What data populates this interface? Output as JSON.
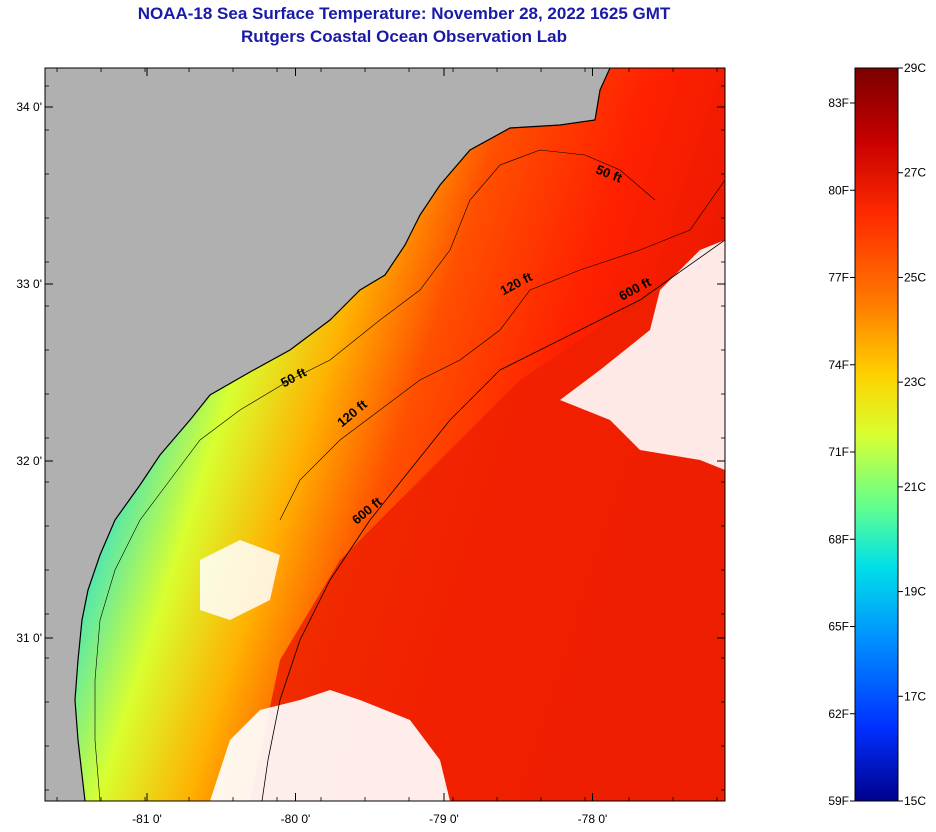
{
  "title": {
    "line1": "NOAA-18 Sea Surface Temperature:  November 28, 2022 1625 GMT",
    "line2": "Rutgers Coastal Ocean Observation Lab"
  },
  "map": {
    "lon_ticks": [
      {
        "lon": -81,
        "label": "-81 0'"
      },
      {
        "lon": -80,
        "label": "-80 0'"
      },
      {
        "lon": -79,
        "label": "-79 0'"
      },
      {
        "lon": -78,
        "label": "-78 0'"
      }
    ],
    "lat_ticks": [
      {
        "lat": 34,
        "label": "34 0'"
      },
      {
        "lat": 33,
        "label": "33 0'"
      },
      {
        "lat": 32,
        "label": "32 0'"
      },
      {
        "lat": 31,
        "label": "31 0'"
      }
    ],
    "contour_labels": [
      {
        "text": "50 ft",
        "lon": -77.9,
        "lat": 33.6
      },
      {
        "text": "120 ft",
        "lon": -78.5,
        "lat": 32.98
      },
      {
        "text": "600 ft",
        "lon": -77.7,
        "lat": 32.95
      },
      {
        "text": "50 ft",
        "lon": -80.0,
        "lat": 32.45
      },
      {
        "text": "120 ft",
        "lon": -79.6,
        "lat": 32.25
      },
      {
        "text": "600 ft",
        "lon": -79.5,
        "lat": 31.7
      }
    ],
    "colors": {
      "land": "#b0b0b0",
      "cloud": "#ffffff",
      "coast": "#000000"
    }
  },
  "colorbar": {
    "celsius_labels": [
      "29C",
      "27C",
      "25C",
      "23C",
      "21C",
      "19C",
      "17C",
      "15C"
    ],
    "fahrenheit_labels": [
      "83F",
      "80F",
      "77F",
      "74F",
      "71F",
      "68F",
      "65F",
      "62F",
      "59F"
    ],
    "range_c": [
      15,
      29
    ],
    "colors_top_to_bottom": [
      "#7a0000",
      "#c80000",
      "#ff2a00",
      "#ff7a00",
      "#ffd200",
      "#d8ff30",
      "#60ff90",
      "#00e0e8",
      "#0090ff",
      "#0030ff",
      "#00008c"
    ]
  }
}
